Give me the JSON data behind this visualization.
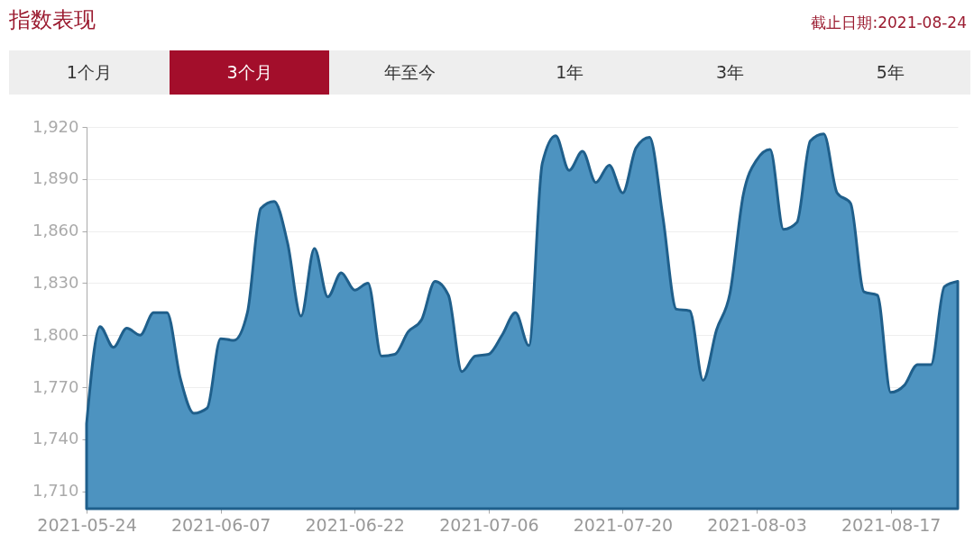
{
  "chart_data": {
    "type": "area",
    "title": "指数表现",
    "annotations": [
      "截止日期:2021-08-24",
      "1个月",
      "3个月",
      "年至今",
      "1年",
      "3年",
      "5年"
    ],
    "categories": [
      "2021-05-24",
      null,
      null,
      null,
      null,
      null,
      null,
      null,
      null,
      null,
      "2021-06-07",
      null,
      null,
      null,
      null,
      null,
      null,
      null,
      null,
      null,
      "2021-06-22",
      null,
      null,
      null,
      null,
      null,
      null,
      null,
      null,
      null,
      "2021-07-06",
      null,
      null,
      null,
      null,
      null,
      null,
      null,
      null,
      null,
      "2021-07-20",
      null,
      null,
      null,
      null,
      null,
      null,
      null,
      null,
      null,
      "2021-08-03",
      null,
      null,
      null,
      null,
      null,
      null,
      null,
      null,
      null,
      "2021-08-17",
      null,
      null,
      null,
      null,
      null
    ],
    "series": [
      {
        "color": "#4d93c0",
        "values": [
          1749,
          1805,
          1793,
          1804,
          1800,
          1813,
          1813,
          1775,
          1755,
          1758,
          1798,
          1797,
          1813,
          1873,
          1877,
          1853,
          1811,
          1850,
          1822,
          1836,
          1826,
          1830,
          1788,
          1789,
          1802,
          1809,
          1831,
          1823,
          1779,
          1788,
          1789,
          1800,
          1813,
          1794,
          1899,
          1915,
          1895,
          1906,
          1888,
          1898,
          1882,
          1908,
          1914,
          1868,
          1815,
          1814,
          1774,
          1803,
          1824,
          1881,
          1901,
          1907,
          1861,
          1865,
          1912,
          1916,
          1882,
          1876,
          1825,
          1823,
          1767,
          1771,
          1783,
          1783,
          1828,
          1831
        ]
      }
    ],
    "ylim": [
      1700,
      1920
    ],
    "yticks": [
      {
        "value": 1710,
        "label": "1,710"
      },
      {
        "value": 1740,
        "label": "1,740"
      },
      {
        "value": 1770,
        "label": "1,770"
      },
      {
        "value": 1800,
        "label": "1,800"
      },
      {
        "value": 1830,
        "label": "1,830"
      },
      {
        "value": 1860,
        "label": "1,860"
      },
      {
        "value": 1890,
        "label": "1,890"
      },
      {
        "value": 1920,
        "label": "1,920"
      }
    ],
    "grid": "y"
  }
}
